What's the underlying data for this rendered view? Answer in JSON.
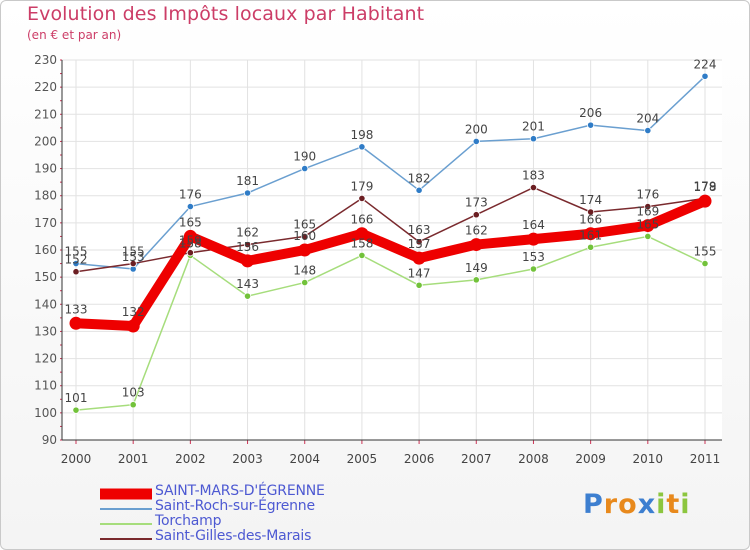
{
  "header": {
    "title": "Evolution des Impôts locaux par Habitant",
    "subtitle": "(en € et par an)"
  },
  "brand": {
    "letters": [
      "P",
      "r",
      "o",
      "x",
      "i",
      "t",
      "i"
    ],
    "colors": [
      "#3d7fd0",
      "#e8891c",
      "#e8891c",
      "#3d7fd0",
      "#8cc63f",
      "#e8891c",
      "#8cc63f"
    ]
  },
  "chart_data": {
    "type": "line",
    "title": "Evolution des Impôts locaux par Habitant",
    "subtitle": "(en € et par an)",
    "xlabel": "",
    "ylabel": "",
    "x": [
      "2000",
      "2001",
      "2002",
      "2003",
      "2004",
      "2005",
      "2006",
      "2007",
      "2008",
      "2009",
      "2010",
      "2011"
    ],
    "ylim": [
      90,
      230
    ],
    "yticks": [
      90,
      100,
      110,
      120,
      130,
      140,
      150,
      160,
      170,
      180,
      190,
      200,
      210,
      220,
      230
    ],
    "grid": true,
    "legend_position": "bottom-left",
    "series": [
      {
        "name": "SAINT-MARS-D'ÉGRENNE",
        "color": "#ee0000",
        "emphasis": true,
        "values": [
          133,
          132,
          165,
          156,
          160,
          166,
          157,
          162,
          164,
          166,
          169,
          178
        ],
        "labels": [
          "133",
          "132",
          "165",
          "156",
          "160",
          "166",
          "157",
          "162",
          "164",
          "166",
          "169",
          "178"
        ]
      },
      {
        "name": "Saint-Roch-sur-Égrenne",
        "color": "#6a9fd0",
        "marker": "#2f7cc7",
        "values": [
          155,
          153,
          176,
          181,
          190,
          198,
          182,
          200,
          201,
          206,
          204,
          224
        ],
        "labels": [
          "155",
          "153",
          "176",
          "181",
          "190",
          "198",
          "182",
          "200",
          "201",
          "206",
          "204",
          "224"
        ]
      },
      {
        "name": "Torchamp",
        "color": "#a6dd7c",
        "marker": "#72c23a",
        "values": [
          101,
          103,
          158,
          143,
          148,
          158,
          147,
          149,
          153,
          161,
          165,
          155
        ],
        "labels": [
          "101",
          "103",
          "158",
          "143",
          "148",
          "158",
          "147",
          "149",
          "153",
          "161",
          "165",
          "155"
        ]
      },
      {
        "name": "Saint-Gilles-des-Marais",
        "color": "#7a2a2e",
        "marker": "#6b1e22",
        "values": [
          152,
          155,
          159,
          162,
          165,
          179,
          163,
          173,
          183,
          174,
          176,
          179
        ],
        "labels": [
          "152",
          "155",
          "159",
          "162",
          "165",
          "179",
          "163",
          "173",
          "183",
          "174",
          "176",
          "179"
        ]
      }
    ]
  }
}
